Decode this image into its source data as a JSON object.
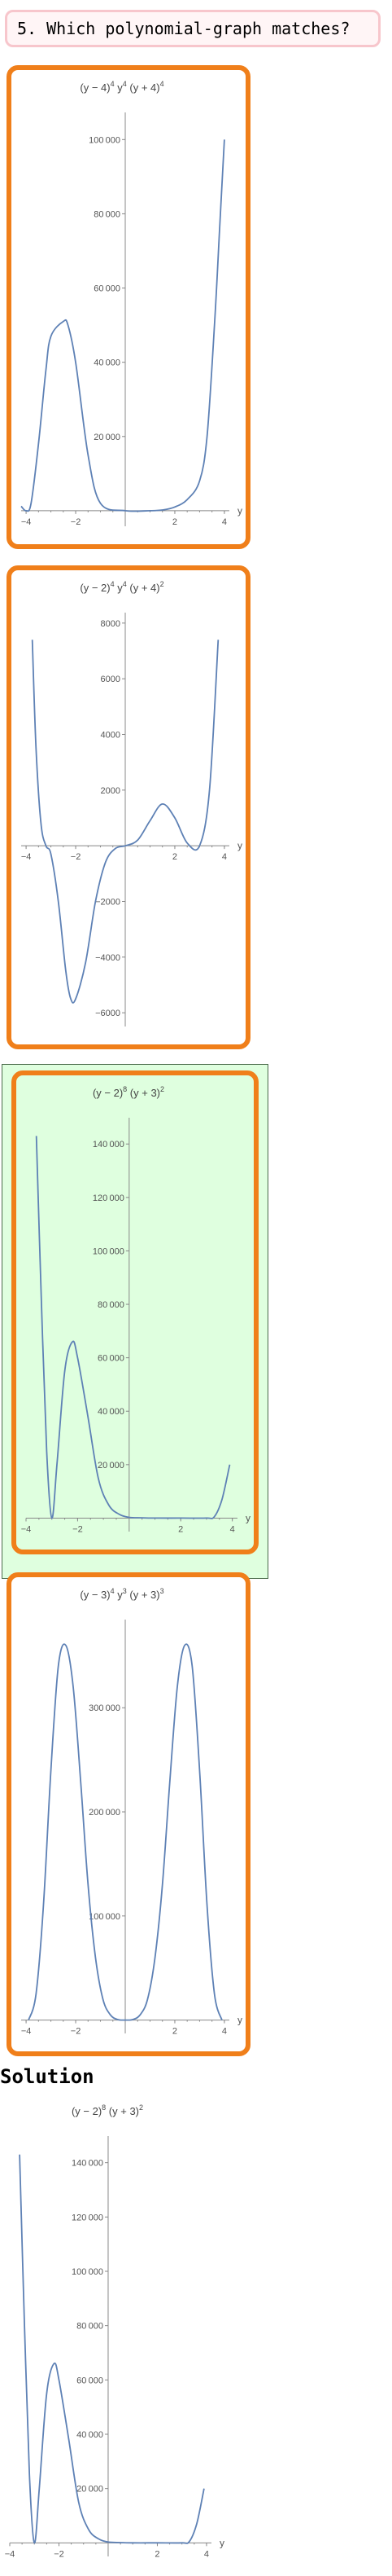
{
  "question": {
    "text": "5. Which polynomial‐graph matches?"
  },
  "options": [
    {
      "id": "a",
      "selected": false,
      "chart_data": {
        "type": "line",
        "title": [
          "(y − 4)",
          "4",
          " y",
          "4",
          " (y + 4)",
          "4"
        ],
        "xlabel": "y",
        "xlim": [
          -4.2,
          4.2
        ],
        "ylim": [
          -2000,
          106000
        ],
        "xticks": [
          {
            "v": -4,
            "label": "−4"
          },
          {
            "v": -2,
            "label": "−2"
          },
          {
            "v": 2,
            "label": "2"
          },
          {
            "v": 4,
            "label": "4"
          }
        ],
        "yticks": [
          {
            "v": 20000,
            "label": "20 000"
          },
          {
            "v": 40000,
            "label": "40 000"
          },
          {
            "v": 60000,
            "label": "60 000"
          },
          {
            "v": 80000,
            "label": "80 000"
          },
          {
            "v": 100000,
            "label": "100 000"
          }
        ],
        "x_samples": [
          -4.2,
          -4.0,
          -3.8,
          -3.5,
          -3.2,
          -3.0,
          -2.5,
          -2.31,
          -2.0,
          -1.5,
          -1.0,
          0.0,
          1.0,
          1.5,
          2.0,
          2.5,
          3.0,
          3.3,
          3.6,
          3.8,
          4.0
        ],
        "y_samples": [
          1200,
          0,
          2000,
          18000,
          38000,
          47000,
          51000,
          50000,
          40000,
          15000,
          2000,
          0,
          0,
          200,
          1000,
          3000,
          8000,
          20000,
          50000,
          75000,
          100000
        ]
      }
    },
    {
      "id": "b",
      "selected": false,
      "chart_data": {
        "type": "line",
        "title": [
          "(y − 2)",
          "4",
          " y",
          "4",
          " (y + 4)",
          "2"
        ],
        "xlabel": "y",
        "xlim": [
          -4.2,
          4.2
        ],
        "ylim": [
          -6200,
          8200
        ],
        "xticks": [
          {
            "v": -4,
            "label": "−4"
          },
          {
            "v": -2,
            "label": "−2"
          },
          {
            "v": 2,
            "label": "2"
          },
          {
            "v": 4,
            "label": "4"
          }
        ],
        "yticks": [
          {
            "v": -6000,
            "label": "−6000"
          },
          {
            "v": -4000,
            "label": "−4000"
          },
          {
            "v": -2000,
            "label": "−2000"
          },
          {
            "v": 2000,
            "label": "2000"
          },
          {
            "v": 4000,
            "label": "4000"
          },
          {
            "v": 6000,
            "label": "6000"
          },
          {
            "v": 8000,
            "label": "8000"
          }
        ],
        "x_samples": [
          -3.75,
          -3.6,
          -3.4,
          -3.2,
          -3.0,
          -2.7,
          -2.4,
          -2.2,
          -2.0,
          -1.6,
          -1.2,
          -0.8,
          -0.4,
          0.0,
          0.5,
          1.0,
          1.5,
          2.0,
          2.5,
          3.0,
          3.4,
          3.75
        ],
        "y_samples": [
          7400,
          3500,
          800,
          0,
          -300,
          -2000,
          -4500,
          -5500,
          -5500,
          -4200,
          -2000,
          -600,
          -100,
          0,
          200,
          900,
          1500,
          1000,
          100,
          0,
          2000,
          7400
        ]
      }
    },
    {
      "id": "c",
      "selected": true,
      "chart_data": {
        "type": "line",
        "title": [
          "(y − 2)",
          "8",
          " (y + 3)",
          "2"
        ],
        "xlabel": "y",
        "xlim": [
          -4.0,
          4.2
        ],
        "ylim": [
          -2000,
          148000
        ],
        "xticks": [
          {
            "v": -4,
            "label": "−4"
          },
          {
            "v": -2,
            "label": "−2"
          },
          {
            "v": 2,
            "label": "2"
          },
          {
            "v": 4,
            "label": "4"
          }
        ],
        "yticks": [
          {
            "v": 20000,
            "label": "20 000"
          },
          {
            "v": 40000,
            "label": "40 000"
          },
          {
            "v": 60000,
            "label": "60 000"
          },
          {
            "v": 80000,
            "label": "80 000"
          },
          {
            "v": 100000,
            "label": "100 000"
          },
          {
            "v": 120000,
            "label": "120 000"
          },
          {
            "v": 140000,
            "label": "140 000"
          }
        ],
        "x_samples": [
          -3.6,
          -3.4,
          -3.2,
          -3.0,
          -2.8,
          -2.5,
          -2.2,
          -2.0,
          -1.6,
          -1.2,
          -0.8,
          -0.4,
          0.0,
          0.5,
          1.0,
          2.0,
          3.0,
          3.3,
          3.6,
          3.9
        ],
        "y_samples": [
          143000,
          80000,
          25000,
          0,
          20000,
          55000,
          66000,
          60000,
          38000,
          15000,
          5000,
          1500,
          300,
          100,
          0,
          0,
          0,
          500,
          7000,
          20000
        ]
      }
    },
    {
      "id": "d",
      "selected": false,
      "chart_data": {
        "type": "line",
        "title": [
          "(y − 3)",
          "4",
          " y",
          "3",
          " (y + 3)",
          "3"
        ],
        "xlabel": "y",
        "xlim": [
          -4.2,
          4.2
        ],
        "ylim": [
          -5000,
          380000
        ],
        "xticks": [
          {
            "v": -4,
            "label": "−4"
          },
          {
            "v": -2,
            "label": "−2"
          },
          {
            "v": 2,
            "label": "2"
          },
          {
            "v": 4,
            "label": "4"
          }
        ],
        "yticks": [
          {
            "v": 100000,
            "label": "100 000"
          },
          {
            "v": 200000,
            "label": "200 000"
          },
          {
            "v": 300000,
            "label": "300 000"
          }
        ],
        "x_samples": [
          -3.9,
          -3.6,
          -3.3,
          -3.0,
          -2.7,
          -2.4,
          -2.1,
          -1.8,
          -1.5,
          -1.2,
          -0.9,
          -0.6,
          -0.3,
          0.0,
          0.3,
          0.6,
          0.9,
          1.2,
          1.5,
          1.8,
          2.1,
          2.4,
          2.7,
          3.0,
          3.3,
          3.6,
          3.9
        ],
        "y_samples": [
          0,
          25000,
          110000,
          240000,
          340000,
          360000,
          320000,
          230000,
          130000,
          60000,
          20000,
          5000,
          500,
          0,
          500,
          5000,
          20000,
          60000,
          130000,
          230000,
          320000,
          360000,
          340000,
          240000,
          110000,
          25000,
          0
        ]
      }
    }
  ],
  "solution": {
    "heading": "Solution",
    "chart_data": {
      "type": "line",
      "title": [
        "(y − 2)",
        "8",
        " (y + 3)",
        "2"
      ],
      "xlabel": "y",
      "xlim": [
        -4.0,
        4.2
      ],
      "ylim": [
        -2000,
        148000
      ],
      "xticks": [
        {
          "v": -4,
          "label": "−4"
        },
        {
          "v": -2,
          "label": "−2"
        },
        {
          "v": 2,
          "label": "2"
        },
        {
          "v": 4,
          "label": "4"
        }
      ],
      "yticks": [
        {
          "v": 20000,
          "label": "20 000"
        },
        {
          "v": 40000,
          "label": "40 000"
        },
        {
          "v": 60000,
          "label": "60 000"
        },
        {
          "v": 80000,
          "label": "80 000"
        },
        {
          "v": 100000,
          "label": "100 000"
        },
        {
          "v": 120000,
          "label": "120 000"
        },
        {
          "v": 140000,
          "label": "140 000"
        }
      ],
      "x_samples": [
        -3.6,
        -3.4,
        -3.2,
        -3.0,
        -2.8,
        -2.5,
        -2.2,
        -2.0,
        -1.6,
        -1.2,
        -0.8,
        -0.4,
        0.0,
        0.5,
        1.0,
        2.0,
        3.0,
        3.3,
        3.6,
        3.9
      ],
      "y_samples": [
        143000,
        80000,
        25000,
        0,
        20000,
        55000,
        66000,
        60000,
        38000,
        15000,
        5000,
        1500,
        300,
        100,
        0,
        0,
        0,
        500,
        7000,
        20000
      ]
    }
  },
  "colors": {
    "curve": "#5e81b5",
    "border": "#f07f1a",
    "selected_bg": "#dfffdf",
    "axis": "#888888"
  }
}
